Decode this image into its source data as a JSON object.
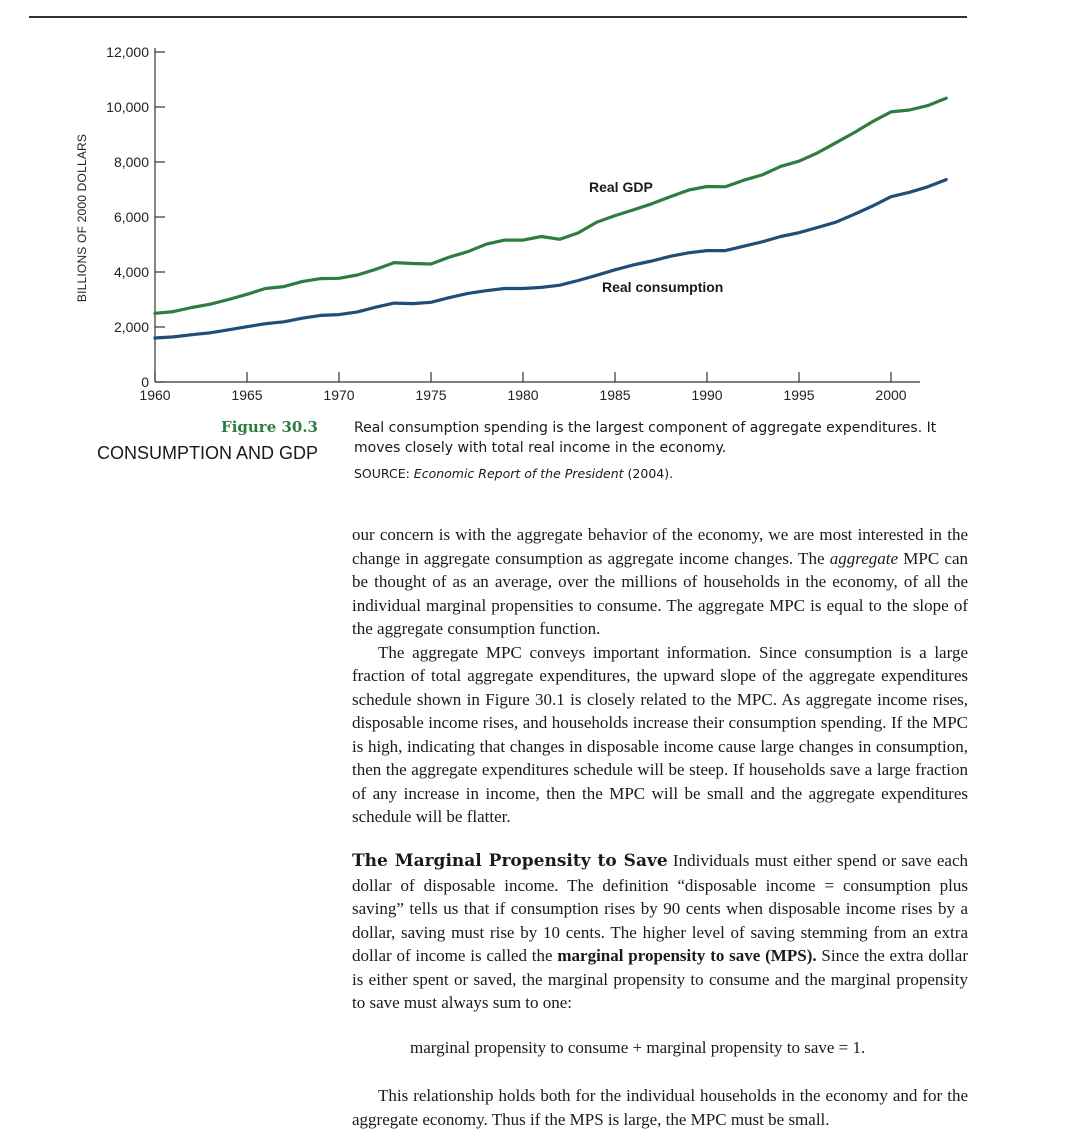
{
  "figure": {
    "number": "Figure 30.3",
    "title": "CONSUMPTION AND GDP",
    "caption": "Real consumption spending is the largest component of aggregate expenditures. It moves closely with total real income in the economy.",
    "source_prefix": "SOURCE: ",
    "source_title": "Economic Report of the President",
    "source_suffix": " (2004)."
  },
  "chart_data": {
    "type": "line",
    "ylabel": "BILLIONS OF 2000 DOLLARS",
    "xlabel": "",
    "xlim": [
      1960,
      2003
    ],
    "ylim": [
      0,
      12000
    ],
    "x_ticks": [
      "1960",
      "1965",
      "1970",
      "1975",
      "1980",
      "1985",
      "1990",
      "1995",
      "2000"
    ],
    "y_ticks": [
      "0",
      "2,000",
      "4,000",
      "6,000",
      "8,000",
      "10,000",
      "12,000"
    ],
    "grid": false,
    "legend": "inline labels",
    "colors": {
      "gdp": "#2e7d3e",
      "consumption": "#1f4e79"
    },
    "series": [
      {
        "name": "Real GDP",
        "x": [
          1960,
          1961,
          1962,
          1963,
          1964,
          1965,
          1966,
          1967,
          1968,
          1969,
          1970,
          1971,
          1972,
          1973,
          1974,
          1975,
          1976,
          1977,
          1978,
          1979,
          1980,
          1981,
          1982,
          1983,
          1984,
          1985,
          1986,
          1987,
          1988,
          1989,
          1990,
          1991,
          1992,
          1993,
          1994,
          1995,
          1996,
          1997,
          1998,
          1999,
          2000,
          2001,
          2002,
          2003
        ],
        "values": [
          2500,
          2560,
          2710,
          2830,
          3000,
          3190,
          3400,
          3470,
          3650,
          3760,
          3770,
          3890,
          4100,
          4340,
          4310,
          4290,
          4540,
          4740,
          5010,
          5160,
          5160,
          5290,
          5190,
          5420,
          5810,
          6050,
          6260,
          6480,
          6740,
          6980,
          7110,
          7100,
          7340,
          7530,
          7840,
          8030,
          8330,
          8700,
          9070,
          9470,
          9820,
          9890,
          10050,
          10320
        ]
      },
      {
        "name": "Real consumption",
        "x": [
          1960,
          1961,
          1962,
          1963,
          1964,
          1965,
          1966,
          1967,
          1968,
          1969,
          1970,
          1971,
          1972,
          1973,
          1974,
          1975,
          1976,
          1977,
          1978,
          1979,
          1980,
          1981,
          1982,
          1983,
          1984,
          1985,
          1986,
          1987,
          1988,
          1989,
          1990,
          1991,
          1992,
          1993,
          1994,
          1995,
          1996,
          1997,
          1998,
          1999,
          2000,
          2001,
          2002,
          2003
        ],
        "values": [
          1600,
          1640,
          1720,
          1790,
          1900,
          2010,
          2120,
          2190,
          2320,
          2420,
          2450,
          2550,
          2720,
          2870,
          2850,
          2900,
          3070,
          3220,
          3320,
          3400,
          3400,
          3440,
          3520,
          3690,
          3880,
          4080,
          4260,
          4400,
          4570,
          4700,
          4780,
          4780,
          4940,
          5100,
          5290,
          5430,
          5620,
          5810,
          6100,
          6400,
          6740,
          6900,
          7100,
          7360
        ]
      }
    ]
  },
  "body": {
    "p1": "our concern is with the aggregate behavior of the economy, we are most interested in the change in aggregate consumption as aggregate income changes. The ",
    "p1_italic": "aggregate",
    "p1_rest": " MPC can be thought of as an average, over the millions of households in the economy, of all the individual marginal propensities to consume. The aggregate MPC is equal to the slope of the aggregate consumption function.",
    "p2": "The aggregate MPC conveys important information. Since consumption is a large fraction of total aggregate expenditures, the upward slope of the aggregate expenditures schedule shown in Figure 30.1 is closely related to the MPC. As aggregate income rises, disposable income rises, and households increase their consumption spending. If the MPC is high, indicating that changes in disposable income cause large changes in consumption, then the aggregate expenditures schedule will be steep. If households save a large fraction of any increase in income, then the MPC will be small and the aggregate expenditures schedule will be flatter.",
    "section_head": "The Marginal Propensity to Save",
    "p3_a": " Individuals must either spend or save each dollar of disposable income. The definition “disposable income = consumption plus saving” tells us that if consumption rises by 90 cents when disposable income rises by a dollar, saving must rise by 10 cents. The higher level of saving stemming from an extra dollar of income is called the ",
    "p3_bold": "marginal propensity to save (MPS).",
    "p3_b": " Since the extra dollar is either spent or saved, the marginal propensity to consume and the marginal propensity to save must always sum to one:",
    "equation": "marginal propensity to consume + marginal propensity to save = 1.",
    "p4": "This relationship holds both for the individual households in the economy and for the aggregate economy. Thus if the MPS is large, the MPC must be small."
  }
}
